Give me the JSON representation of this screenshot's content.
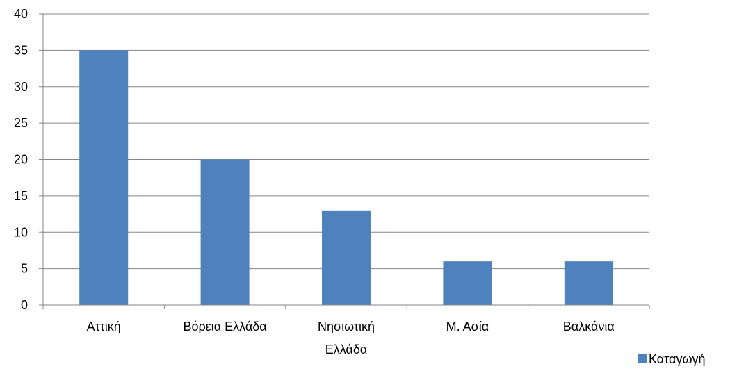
{
  "chart_data": {
    "type": "bar",
    "categories": [
      [
        "Αττική"
      ],
      [
        "Βόρεια Ελλάδα"
      ],
      [
        "Νησιωτική",
        "Ελλάδα"
      ],
      [
        "Μ. Ασία"
      ],
      [
        "Βαλκάνια"
      ]
    ],
    "series": [
      {
        "name": "Καταγωγή",
        "values": [
          35,
          20,
          13,
          6,
          6
        ],
        "color": "#4F81BD"
      }
    ],
    "ylim": [
      0,
      40
    ],
    "yticks": [
      0,
      5,
      10,
      15,
      20,
      25,
      30,
      35,
      40
    ],
    "grid": true,
    "legend": "bottom-right",
    "title": "",
    "xlabel": "",
    "ylabel": ""
  }
}
